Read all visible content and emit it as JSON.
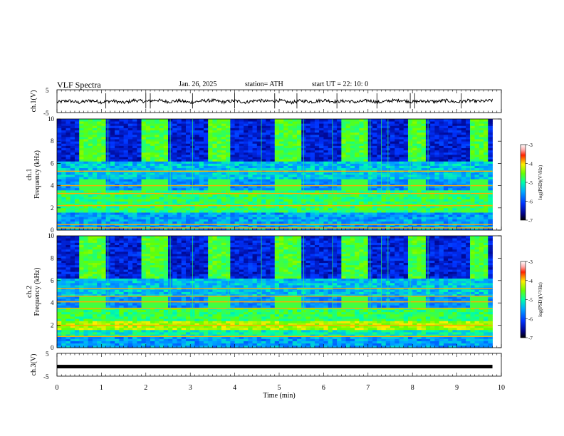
{
  "header": {
    "title": "VLF  Spectra",
    "date": "Jan. 26, 2025",
    "station": "station= ATH",
    "start": "start  UT  =   22: 10: 0"
  },
  "chart_data": [
    {
      "type": "line",
      "name": "ch1",
      "ylabel": "ch.1(V)",
      "ylim": [
        -5,
        5
      ],
      "y_ticks": [
        "5",
        "-5"
      ],
      "x": [
        0,
        0.25,
        0.5,
        0.75,
        1,
        1.25,
        1.5,
        1.75,
        2,
        2.25,
        2.5,
        2.75,
        3,
        3.25,
        3.5,
        3.75,
        4,
        4.25,
        4.5,
        4.75,
        5,
        5.25,
        5.5,
        5.75,
        6,
        6.25,
        6.5,
        6.75,
        7,
        7.25,
        7.5,
        7.75,
        8,
        8.25,
        8.5,
        8.75,
        9,
        9.25,
        9.5,
        9.8
      ],
      "values": [
        -0.5,
        0.2,
        -0.6,
        0.3,
        -0.4,
        0.1,
        -0.7,
        0.4,
        -0.2,
        0.5,
        -0.3,
        0.2,
        -0.6,
        0.1,
        0.3,
        -0.4,
        0.2,
        -0.5,
        0.4,
        -0.1,
        0.3,
        -0.6,
        0.2,
        -0.3,
        0.5,
        -0.2,
        0.1,
        -0.4,
        0.3,
        -0.5,
        0.2,
        0.4,
        -0.3,
        0.1,
        -0.2,
        0.3,
        -0.4,
        0.2,
        -0.1,
        0.3
      ]
    },
    {
      "type": "heatmap",
      "name": "ch1-spectrogram",
      "ylabel": "ch.1\nFrequency (kHz)",
      "ylim": [
        0,
        10
      ],
      "y_ticks": [
        "0",
        "2",
        "4",
        "6",
        "8",
        "10"
      ],
      "xlim": [
        0,
        10
      ],
      "colorbar": {
        "label": "log(PSD)(V²/Hz)",
        "range": [
          -7,
          -3
        ],
        "ticks": [
          "-3",
          "-4",
          "-5",
          "-6",
          "-7"
        ]
      },
      "active_intervals_min": [
        [
          0.55,
          1.15
        ],
        [
          1.95,
          2.55
        ],
        [
          3.45,
          3.85
        ],
        [
          4.95,
          5.55
        ],
        [
          6.45,
          7.05
        ],
        [
          7.95,
          8.35
        ],
        [
          9.35,
          9.75
        ]
      ],
      "strong_bands_khz": [
        0.2,
        0.5,
        2.2,
        3.3,
        4.0,
        5.3
      ]
    },
    {
      "type": "heatmap",
      "name": "ch2-spectrogram",
      "ylabel": "ch.2\nFrequency (kHz)",
      "ylim": [
        0,
        10
      ],
      "y_ticks": [
        "0",
        "2",
        "4",
        "6",
        "8",
        "10"
      ],
      "xlim": [
        0,
        10
      ],
      "colorbar": {
        "label": "log(PSD)(V²/Hz)",
        "range": [
          -7,
          -3
        ],
        "ticks": [
          "-3",
          "-4",
          "-5",
          "-6",
          "-7"
        ]
      },
      "active_intervals_min": [
        [
          0.55,
          1.15
        ],
        [
          1.95,
          2.55
        ],
        [
          3.45,
          3.85
        ],
        [
          4.95,
          5.55
        ],
        [
          6.45,
          7.05
        ],
        [
          7.95,
          8.35
        ],
        [
          9.35,
          9.75
        ]
      ],
      "strong_bands_khz": [
        1.0,
        2.0,
        3.5,
        4.1,
        4.6,
        5.3
      ]
    },
    {
      "type": "line",
      "name": "ch3",
      "ylabel": "ch.3(V)",
      "ylim": [
        -5,
        5
      ],
      "y_ticks": [
        "5",
        "-5"
      ],
      "x": [
        0,
        9.8
      ],
      "values": [
        -0.8,
        -0.8
      ]
    }
  ],
  "x_axis": {
    "label": "Time  (min)",
    "range": [
      0,
      10
    ],
    "ticks": [
      "0",
      "1",
      "2",
      "3",
      "4",
      "5",
      "6",
      "7",
      "8",
      "9",
      "10"
    ]
  }
}
